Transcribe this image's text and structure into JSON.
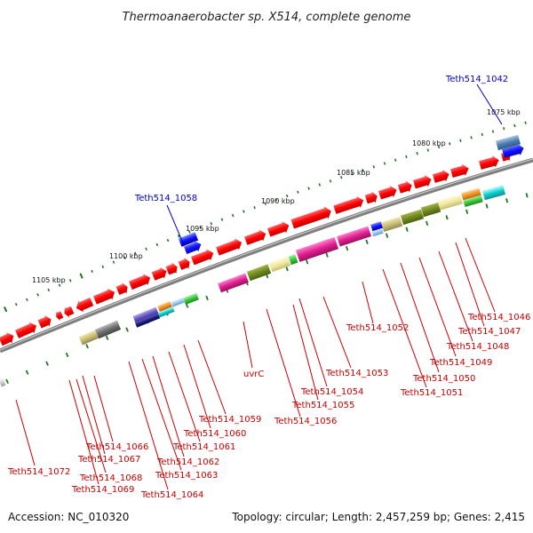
{
  "title": "Thermoanaerobacter sp. X514, complete genome",
  "footer": {
    "accession": "Accession: NC_010320",
    "topology": "Topology: circular; Length: 2,457,259 bp; Genes: 2,415"
  },
  "colors": {
    "backbone": "#7f7f7f",
    "gene": "#ff0000",
    "label_bottom": "#cc0000",
    "label_top": "#0000cc",
    "tick": "#1e7a1e"
  },
  "kbp_labels": [
    "1075 kbp",
    "1080 kbp",
    "1085 kbp",
    "1090 kbp",
    "1095 kbp",
    "1100 kbp",
    "1105 kbp"
  ],
  "top_labels": [
    "Teth514_1042",
    "Teth514_1058"
  ],
  "bottom_labels": [
    "Teth514_1046",
    "Teth514_1047",
    "Teth514_1048",
    "Teth514_1049",
    "Teth514_1050",
    "Teth514_1051",
    "Teth514_1052",
    "Teth514_1053",
    "Teth514_1054",
    "Teth514_1055",
    "Teth514_1056",
    "uvrC",
    "Teth514_1059",
    "Teth514_1060",
    "Teth514_1061",
    "Teth514_1062",
    "Teth514_1063",
    "Teth514_1064",
    "Teth514_1066",
    "Teth514_1067",
    "Teth514_1068",
    "Teth514_1069",
    "Teth514_1072"
  ]
}
